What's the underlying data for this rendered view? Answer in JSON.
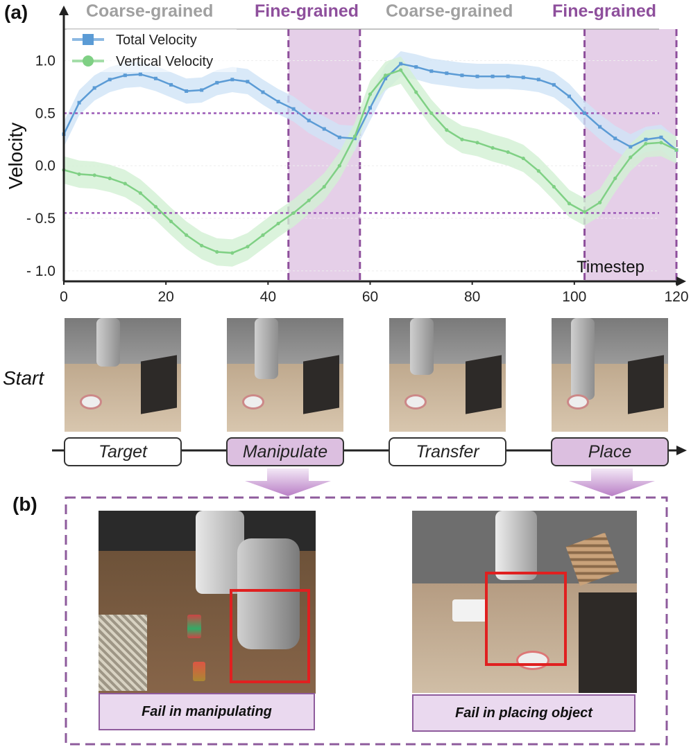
{
  "panel_a_label": "(a)",
  "panel_b_label": "(b)",
  "phase_titles": [
    "Coarse-grained",
    "Fine-grained",
    "Coarse-grained",
    "Fine-grained"
  ],
  "colors": {
    "coarse": "#a0a0a0",
    "fine": "#8e4f9c",
    "fine_band": "#dcbfe0",
    "total": "#5b9bd5",
    "total_band": "#cfe3f6",
    "vertical": "#7fd084",
    "vertical_band": "#d2f0d3",
    "threshold": "#9b59b6",
    "fail_box": "#e02020"
  },
  "chart_data": {
    "type": "line",
    "xlabel": "Timestep",
    "ylabel": "Velocity",
    "xlim": [
      0,
      120
    ],
    "ylim": [
      -1.1,
      1.3
    ],
    "xticks": [
      0,
      20,
      40,
      60,
      80,
      100,
      120
    ],
    "yticks": [
      1.0,
      0.5,
      0.0,
      -0.5,
      -1.0
    ],
    "ytick_labels": [
      "1.0",
      "0.5",
      "0.0",
      "- 0.5",
      "- 1.0"
    ],
    "fine_grained_regions": [
      [
        44,
        58
      ],
      [
        102,
        120
      ]
    ],
    "threshold_lines": [
      0.5,
      -0.45
    ],
    "legend": "top-left",
    "series": [
      {
        "name": "Total Velocity",
        "marker": "square",
        "x": [
          0,
          3,
          6,
          9,
          12,
          15,
          18,
          21,
          24,
          27,
          30,
          33,
          36,
          39,
          42,
          45,
          48,
          51,
          54,
          57,
          60,
          63,
          66,
          69,
          72,
          75,
          78,
          81,
          84,
          87,
          90,
          93,
          96,
          99,
          102,
          105,
          108,
          111,
          114,
          117,
          120
        ],
        "values": [
          0.3,
          0.6,
          0.74,
          0.82,
          0.86,
          0.87,
          0.83,
          0.77,
          0.71,
          0.72,
          0.79,
          0.82,
          0.8,
          0.7,
          0.61,
          0.54,
          0.43,
          0.35,
          0.27,
          0.26,
          0.55,
          0.83,
          0.97,
          0.94,
          0.9,
          0.88,
          0.86,
          0.85,
          0.85,
          0.85,
          0.84,
          0.82,
          0.77,
          0.66,
          0.5,
          0.37,
          0.26,
          0.18,
          0.25,
          0.27,
          0.15
        ],
        "band": 0.12
      },
      {
        "name": "Vertical Velocity",
        "marker": "circle",
        "x": [
          0,
          3,
          6,
          9,
          12,
          15,
          18,
          21,
          24,
          27,
          30,
          33,
          36,
          39,
          42,
          45,
          48,
          51,
          54,
          57,
          60,
          63,
          66,
          69,
          72,
          75,
          78,
          81,
          84,
          87,
          90,
          93,
          96,
          99,
          102,
          105,
          108,
          111,
          114,
          117,
          120
        ],
        "values": [
          -0.04,
          -0.08,
          -0.09,
          -0.12,
          -0.17,
          -0.26,
          -0.39,
          -0.53,
          -0.66,
          -0.76,
          -0.82,
          -0.83,
          -0.77,
          -0.66,
          -0.55,
          -0.45,
          -0.33,
          -0.2,
          0.0,
          0.28,
          0.68,
          0.86,
          0.91,
          0.7,
          0.5,
          0.34,
          0.25,
          0.22,
          0.17,
          0.13,
          0.07,
          -0.05,
          -0.2,
          -0.36,
          -0.44,
          -0.35,
          -0.12,
          0.08,
          0.21,
          0.22,
          0.15
        ],
        "band": 0.13
      }
    ]
  },
  "timeline": {
    "start_label": "Start",
    "stages": [
      {
        "label": "Target",
        "fine": false
      },
      {
        "label": "Manipulate",
        "fine": true
      },
      {
        "label": "Transfer",
        "fine": false
      },
      {
        "label": "Place",
        "fine": true
      }
    ]
  },
  "failures": [
    {
      "caption": "Fail in manipulating"
    },
    {
      "caption": "Fail in placing object"
    }
  ]
}
